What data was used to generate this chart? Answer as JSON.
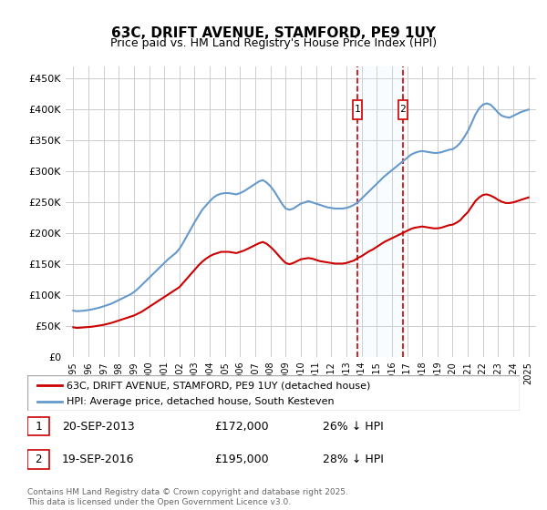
{
  "title": "63C, DRIFT AVENUE, STAMFORD, PE9 1UY",
  "subtitle": "Price paid vs. HM Land Registry's House Price Index (HPI)",
  "ylabel_ticks": [
    "£0",
    "£50K",
    "£100K",
    "£150K",
    "£200K",
    "£250K",
    "£300K",
    "£350K",
    "£400K",
    "£450K"
  ],
  "ytick_values": [
    0,
    50000,
    100000,
    150000,
    200000,
    250000,
    300000,
    350000,
    400000,
    450000
  ],
  "ylim": [
    0,
    470000
  ],
  "xlim_start": 1994.5,
  "xlim_end": 2025.5,
  "legend_label_red": "63C, DRIFT AVENUE, STAMFORD, PE9 1UY (detached house)",
  "legend_label_blue": "HPI: Average price, detached house, South Kesteven",
  "transaction1_date": "20-SEP-2013",
  "transaction1_price": "£172,000",
  "transaction1_hpi": "26% ↓ HPI",
  "transaction1_year": 2013.72,
  "transaction2_date": "19-SEP-2016",
  "transaction2_price": "£195,000",
  "transaction2_hpi": "28% ↓ HPI",
  "transaction2_year": 2016.72,
  "copyright": "Contains HM Land Registry data © Crown copyright and database right 2025.\nThis data is licensed under the Open Government Licence v3.0.",
  "background_color": "#ffffff",
  "grid_color": "#cccccc",
  "line_red": "#cc0000",
  "line_blue": "#6699cc",
  "shade_color": "#ddeeff",
  "hpi_years": [
    1995.0,
    1995.25,
    1995.5,
    1995.75,
    1996.0,
    1996.25,
    1996.5,
    1996.75,
    1997.0,
    1997.25,
    1997.5,
    1997.75,
    1998.0,
    1998.25,
    1998.5,
    1998.75,
    1999.0,
    1999.25,
    1999.5,
    1999.75,
    2000.0,
    2000.25,
    2000.5,
    2000.75,
    2001.0,
    2001.25,
    2001.5,
    2001.75,
    2002.0,
    2002.25,
    2002.5,
    2002.75,
    2003.0,
    2003.25,
    2003.5,
    2003.75,
    2004.0,
    2004.25,
    2004.5,
    2004.75,
    2005.0,
    2005.25,
    2005.5,
    2005.75,
    2006.0,
    2006.25,
    2006.5,
    2006.75,
    2007.0,
    2007.25,
    2007.5,
    2007.75,
    2008.0,
    2008.25,
    2008.5,
    2008.75,
    2009.0,
    2009.25,
    2009.5,
    2009.75,
    2010.0,
    2010.25,
    2010.5,
    2010.75,
    2011.0,
    2011.25,
    2011.5,
    2011.75,
    2012.0,
    2012.25,
    2012.5,
    2012.75,
    2013.0,
    2013.25,
    2013.5,
    2013.75,
    2014.0,
    2014.25,
    2014.5,
    2014.75,
    2015.0,
    2015.25,
    2015.5,
    2015.75,
    2016.0,
    2016.25,
    2016.5,
    2016.75,
    2017.0,
    2017.25,
    2017.5,
    2017.75,
    2018.0,
    2018.25,
    2018.5,
    2018.75,
    2019.0,
    2019.25,
    2019.5,
    2019.75,
    2020.0,
    2020.25,
    2020.5,
    2020.75,
    2021.0,
    2021.25,
    2021.5,
    2021.75,
    2022.0,
    2022.25,
    2022.5,
    2022.75,
    2023.0,
    2023.25,
    2023.5,
    2023.75,
    2024.0,
    2024.25,
    2024.5,
    2024.75,
    2025.0
  ],
  "hpi_values": [
    75000,
    74000,
    74500,
    75000,
    76000,
    77000,
    78500,
    80000,
    82000,
    84000,
    86000,
    89000,
    92000,
    95000,
    98000,
    101000,
    105000,
    110000,
    116000,
    122000,
    128000,
    134000,
    140000,
    146000,
    152000,
    158000,
    163000,
    168000,
    175000,
    185000,
    196000,
    207000,
    218000,
    228000,
    238000,
    245000,
    252000,
    258000,
    262000,
    264000,
    265000,
    265000,
    264000,
    263000,
    265000,
    268000,
    272000,
    276000,
    280000,
    284000,
    286000,
    282000,
    276000,
    268000,
    258000,
    248000,
    240000,
    238000,
    240000,
    244000,
    248000,
    250000,
    252000,
    250000,
    248000,
    246000,
    244000,
    242000,
    241000,
    240000,
    240000,
    240000,
    241000,
    243000,
    246000,
    250000,
    256000,
    262000,
    268000,
    274000,
    280000,
    286000,
    292000,
    297000,
    302000,
    307000,
    312000,
    317000,
    322000,
    327000,
    330000,
    332000,
    333000,
    332000,
    331000,
    330000,
    330000,
    331000,
    333000,
    335000,
    336000,
    340000,
    346000,
    355000,
    365000,
    378000,
    392000,
    402000,
    408000,
    410000,
    408000,
    402000,
    395000,
    390000,
    388000,
    387000,
    390000,
    393000,
    396000,
    398000,
    400000
  ],
  "red_years": [
    1995.0,
    1995.25,
    1995.5,
    1995.75,
    1996.0,
    1996.25,
    1996.5,
    1996.75,
    1997.0,
    1997.25,
    1997.5,
    1997.75,
    1998.0,
    1998.25,
    1998.5,
    1998.75,
    1999.0,
    1999.25,
    1999.5,
    1999.75,
    2000.0,
    2000.25,
    2000.5,
    2000.75,
    2001.0,
    2001.25,
    2001.5,
    2001.75,
    2002.0,
    2002.25,
    2002.5,
    2002.75,
    2003.0,
    2003.25,
    2003.5,
    2003.75,
    2004.0,
    2004.25,
    2004.5,
    2004.75,
    2005.0,
    2005.25,
    2005.5,
    2005.75,
    2006.0,
    2006.25,
    2006.5,
    2006.75,
    2007.0,
    2007.25,
    2007.5,
    2007.75,
    2008.0,
    2008.25,
    2008.5,
    2008.75,
    2009.0,
    2009.25,
    2009.5,
    2009.75,
    2010.0,
    2010.25,
    2010.5,
    2010.75,
    2011.0,
    2011.25,
    2011.5,
    2011.75,
    2012.0,
    2012.25,
    2012.5,
    2012.75,
    2013.0,
    2013.25,
    2013.5,
    2013.75,
    2014.0,
    2014.25,
    2014.5,
    2014.75,
    2015.0,
    2015.25,
    2015.5,
    2015.75,
    2016.0,
    2016.25,
    2016.5,
    2016.75,
    2017.0,
    2017.25,
    2017.5,
    2017.75,
    2018.0,
    2018.25,
    2018.5,
    2018.75,
    2019.0,
    2019.25,
    2019.5,
    2019.75,
    2020.0,
    2020.25,
    2020.5,
    2020.75,
    2021.0,
    2021.25,
    2021.5,
    2021.75,
    2022.0,
    2022.25,
    2022.5,
    2022.75,
    2023.0,
    2023.25,
    2023.5,
    2023.75,
    2024.0,
    2024.25,
    2024.5,
    2024.75,
    2025.0
  ],
  "red_values": [
    48000,
    47000,
    47500,
    48000,
    48500,
    49000,
    50000,
    51000,
    52000,
    53500,
    55000,
    57000,
    59000,
    61000,
    63000,
    65000,
    67000,
    70000,
    73000,
    77000,
    81000,
    85000,
    89000,
    93000,
    97000,
    101000,
    105000,
    109000,
    113000,
    120000,
    127000,
    134000,
    141000,
    148000,
    154000,
    159000,
    163000,
    166000,
    168000,
    170000,
    170000,
    170000,
    169000,
    168000,
    170000,
    172000,
    175000,
    178000,
    181000,
    184000,
    186000,
    183000,
    178000,
    172000,
    165000,
    158000,
    152000,
    150000,
    152000,
    155000,
    158000,
    159000,
    160000,
    159000,
    157000,
    155000,
    154000,
    153000,
    152000,
    151000,
    151000,
    151000,
    152000,
    154000,
    156000,
    160000,
    163000,
    167000,
    171000,
    174000,
    178000,
    182000,
    186000,
    189000,
    192000,
    195000,
    198000,
    201000,
    204000,
    207000,
    209000,
    210000,
    211000,
    210000,
    209000,
    208000,
    208000,
    209000,
    211000,
    213000,
    214000,
    217000,
    221000,
    228000,
    234000,
    243000,
    252000,
    258000,
    262000,
    263000,
    261000,
    258000,
    254000,
    251000,
    249000,
    249000,
    250000,
    252000,
    254000,
    256000,
    258000
  ]
}
